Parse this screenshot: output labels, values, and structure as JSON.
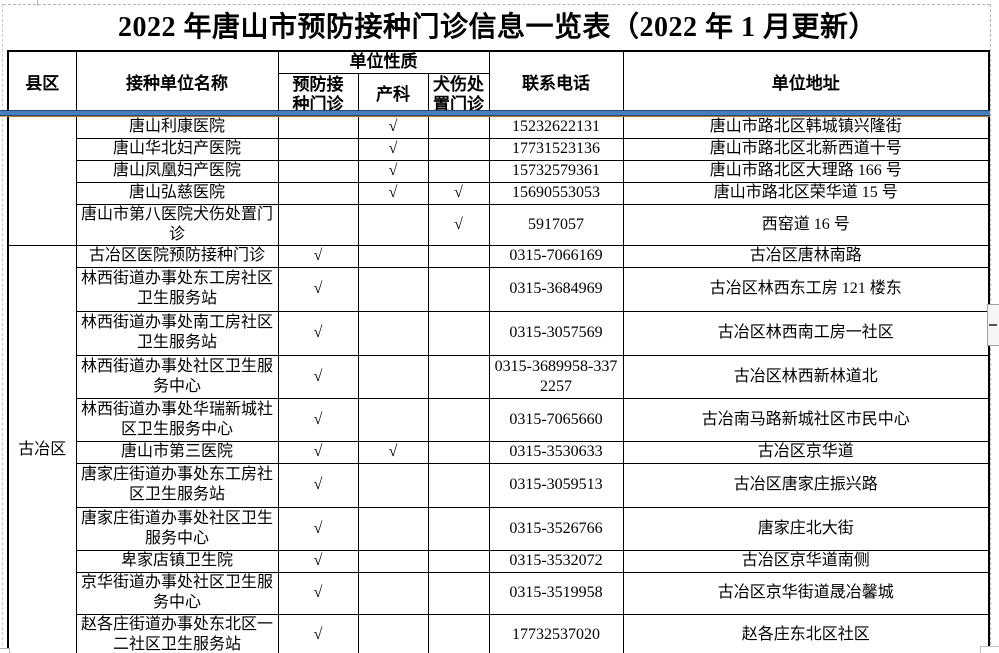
{
  "title": "2022 年唐山市预防接种门诊信息一览表（2022 年 1 月更新）",
  "table": {
    "headers": {
      "district": "县区",
      "unit_name": "接种单位名称",
      "unit_nature": "单位性质",
      "vaccination_clinic": "预防接\n种门诊",
      "obstetrics": "产科",
      "dog_bite_clinic": "犬伤处\n置门诊",
      "phone": "联系电话",
      "address": "单位地址"
    },
    "checkmark": "√",
    "groups": [
      {
        "label": "",
        "span": 5
      },
      {
        "label": "古冶区",
        "span": 11
      }
    ],
    "rows": [
      {
        "name": "唐山利康医院",
        "vaccination": "",
        "obstetrics": "√",
        "dog_bite": "",
        "phone": "15232622131",
        "address": "唐山市路北区韩城镇兴隆街"
      },
      {
        "name": "唐山华北妇产医院",
        "vaccination": "",
        "obstetrics": "√",
        "dog_bite": "",
        "phone": "17731523136",
        "address": "唐山市路北区北新西道十号"
      },
      {
        "name": "唐山凤凰妇产医院",
        "vaccination": "",
        "obstetrics": "√",
        "dog_bite": "",
        "phone": "15732579361",
        "address": "唐山市路北区大理路 166 号"
      },
      {
        "name": "唐山弘慈医院",
        "vaccination": "",
        "obstetrics": "√",
        "dog_bite": "√",
        "phone": "15690553053",
        "address": "唐山市路北区荣华道 15 号"
      },
      {
        "name": "唐山市第八医院犬伤处置门诊",
        "vaccination": "",
        "obstetrics": "",
        "dog_bite": "√",
        "phone": "5917057",
        "address": "西窑道 16 号"
      },
      {
        "name": "古冶区医院预防接种门诊",
        "vaccination": "√",
        "obstetrics": "",
        "dog_bite": "",
        "phone": "0315-7066169",
        "address": "古冶区唐林南路"
      },
      {
        "name": "林西街道办事处东工房社区卫生服务站",
        "vaccination": "√",
        "obstetrics": "",
        "dog_bite": "",
        "phone": "0315-3684969",
        "address": "古冶区林西东工房 121 楼东"
      },
      {
        "name": "林西街道办事处南工房社区卫生服务站",
        "vaccination": "√",
        "obstetrics": "",
        "dog_bite": "",
        "phone": "0315-3057569",
        "address": "古冶区林西南工房一社区"
      },
      {
        "name": "林西街道办事处社区卫生服务中心",
        "vaccination": "√",
        "obstetrics": "",
        "dog_bite": "",
        "phone": "0315-3689958-3372257",
        "address": "古冶区林西新林道北"
      },
      {
        "name": "林西街道办事处华瑞新城社区卫生服务中心",
        "vaccination": "√",
        "obstetrics": "",
        "dog_bite": "",
        "phone": "0315-7065660",
        "address": "古冶南马路新城社区市民中心"
      },
      {
        "name": "唐山市第三医院",
        "vaccination": "√",
        "obstetrics": "√",
        "dog_bite": "",
        "phone": "0315-3530633",
        "address": "古冶区京华道"
      },
      {
        "name": "唐家庄街道办事处东工房社区卫生服务站",
        "vaccination": "√",
        "obstetrics": "",
        "dog_bite": "",
        "phone": "0315-3059513",
        "address": "古冶区唐家庄振兴路"
      },
      {
        "name": "唐家庄街道办事处社区卫生服务中心",
        "vaccination": "√",
        "obstetrics": "",
        "dog_bite": "",
        "phone": "0315-3526766",
        "address": "唐家庄北大街"
      },
      {
        "name": "卑家店镇卫生院",
        "vaccination": "√",
        "obstetrics": "",
        "dog_bite": "",
        "phone": "0315-3532072",
        "address": "古冶区京华道南侧"
      },
      {
        "name": "京华街道办事处社区卫生服务中心",
        "vaccination": "√",
        "obstetrics": "",
        "dog_bite": "",
        "phone": "0315-3519958",
        "address": "古冶区京华街道晟冶馨城"
      },
      {
        "name": "赵各庄街道办事处东北区一二社区卫生服务站",
        "vaccination": "√",
        "obstetrics": "",
        "dog_bite": "",
        "phone": "17732537020",
        "address": "赵各庄东北区社区"
      }
    ]
  },
  "colors": {
    "freeze_line_mid": "#4a7ebb",
    "freeze_line_edge": "#1f4e79",
    "freeze_accent": "#c9883f",
    "grid_border": "#000000",
    "pagebreak_dash": "#b3b3b3"
  }
}
